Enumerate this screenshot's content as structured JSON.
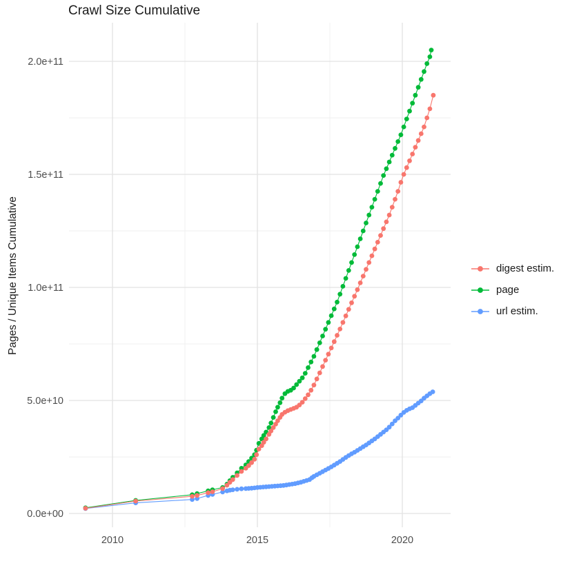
{
  "title": "Crawl Size Cumulative",
  "axes": {
    "y_title": "Pages / Unique Items Cumulative",
    "x_ticks": [
      {
        "label": "2010",
        "value": 2010
      },
      {
        "label": "2015",
        "value": 2015
      },
      {
        "label": "2020",
        "value": 2020
      }
    ],
    "y_ticks": [
      {
        "label": "0.0e+00",
        "value": 0
      },
      {
        "label": "5.0e+10",
        "value": 50000000000.0
      },
      {
        "label": "1.0e+11",
        "value": 100000000000.0
      },
      {
        "label": "1.5e+11",
        "value": 150000000000.0
      },
      {
        "label": "2.0e+11",
        "value": 200000000000.0
      }
    ],
    "tick_color": "#4d4d4d",
    "major_grid_color": "#e2e2e2",
    "minor_grid_color": "#efefef"
  },
  "legend": {
    "items": [
      {
        "label": "digest estim.",
        "color": "#F8766D"
      },
      {
        "label": "page",
        "color": "#00BA38"
      },
      {
        "label": "url estim.",
        "color": "#619CFF"
      }
    ]
  },
  "chart_data": {
    "type": "line",
    "title": "Crawl Size Cumulative",
    "xlabel": "",
    "ylabel": "Pages / Unique Items Cumulative",
    "x_unit": "year (decimal)",
    "xlim": [
      2008.5,
      2021.7
    ],
    "ylim": [
      -6000000000.0,
      217000000000.0
    ],
    "grid": true,
    "legend_position": "right",
    "marker": "point-with-line",
    "series": [
      {
        "name": "digest estim.",
        "color": "#F8766D",
        "points": [
          [
            2009.07,
            2300000000.0
          ],
          [
            2010.8,
            5500000000.0
          ],
          [
            2012.75,
            7600000000.0
          ],
          [
            2012.92,
            8000000000.0
          ],
          [
            2013.3,
            9200000000.0
          ],
          [
            2013.45,
            9600000000.0
          ],
          [
            2013.8,
            11000000000.0
          ],
          [
            2013.95,
            12500000000.0
          ],
          [
            2014.05,
            13800000000.0
          ],
          [
            2014.15,
            15000000000.0
          ],
          [
            2014.3,
            16800000000.0
          ],
          [
            2014.45,
            18600000000.0
          ],
          [
            2014.6,
            20000000000.0
          ],
          [
            2014.7,
            21200000000.0
          ],
          [
            2014.8,
            22500000000.0
          ],
          [
            2014.9,
            24000000000.0
          ],
          [
            2014.97,
            26000000000.0
          ],
          [
            2015.05,
            28500000000.0
          ],
          [
            2015.15,
            30000000000.0
          ],
          [
            2015.22,
            31500000000.0
          ],
          [
            2015.3,
            33000000000.0
          ],
          [
            2015.4,
            35000000000.0
          ],
          [
            2015.47,
            36500000000.0
          ],
          [
            2015.55,
            38000000000.0
          ],
          [
            2015.63,
            39500000000.0
          ],
          [
            2015.7,
            41000000000.0
          ],
          [
            2015.78,
            42500000000.0
          ],
          [
            2015.85,
            43800000000.0
          ],
          [
            2015.95,
            44800000000.0
          ],
          [
            2016.05,
            45500000000.0
          ],
          [
            2016.15,
            46000000000.0
          ],
          [
            2016.25,
            46500000000.0
          ],
          [
            2016.35,
            47000000000.0
          ],
          [
            2016.45,
            48000000000.0
          ],
          [
            2016.55,
            49200000000.0
          ],
          [
            2016.65,
            50800000000.0
          ],
          [
            2016.75,
            52500000000.0
          ],
          [
            2016.85,
            54500000000.0
          ],
          [
            2016.95,
            56800000000.0
          ],
          [
            2017.05,
            59500000000.0
          ],
          [
            2017.15,
            62200000000.0
          ],
          [
            2017.25,
            65000000000.0
          ],
          [
            2017.35,
            67800000000.0
          ],
          [
            2017.45,
            70500000000.0
          ],
          [
            2017.55,
            73200000000.0
          ],
          [
            2017.65,
            76000000000.0
          ],
          [
            2017.75,
            78800000000.0
          ],
          [
            2017.85,
            81600000000.0
          ],
          [
            2017.95,
            84500000000.0
          ],
          [
            2018.05,
            87400000000.0
          ],
          [
            2018.15,
            90300000000.0
          ],
          [
            2018.25,
            93200000000.0
          ],
          [
            2018.35,
            96100000000.0
          ],
          [
            2018.45,
            99000000000.0
          ],
          [
            2018.55,
            102000000000.0
          ],
          [
            2018.65,
            105000000000.0
          ],
          [
            2018.75,
            108000000000.0
          ],
          [
            2018.85,
            111000000000.0
          ],
          [
            2018.95,
            114000000000.0
          ],
          [
            2019.05,
            117000000000.0
          ],
          [
            2019.15,
            120000000000.0
          ],
          [
            2019.25,
            123000000000.0
          ],
          [
            2019.35,
            126000000000.0
          ],
          [
            2019.45,
            129000000000.0
          ],
          [
            2019.55,
            132000000000.0
          ],
          [
            2019.65,
            135500000000.0
          ],
          [
            2019.75,
            139000000000.0
          ],
          [
            2019.85,
            142500000000.0
          ],
          [
            2019.95,
            146500000000.0
          ],
          [
            2020.05,
            150000000000.0
          ],
          [
            2020.15,
            153000000000.0
          ],
          [
            2020.25,
            156000000000.0
          ],
          [
            2020.35,
            159000000000.0
          ],
          [
            2020.45,
            162000000000.0
          ],
          [
            2020.55,
            165000000000.0
          ],
          [
            2020.65,
            168000000000.0
          ],
          [
            2020.75,
            171000000000.0
          ],
          [
            2020.85,
            175000000000.0
          ],
          [
            2020.95,
            179000000000.0
          ],
          [
            2021.07,
            185000000000.0
          ]
        ]
      },
      {
        "name": "page",
        "color": "#00BA38",
        "points": [
          [
            2009.07,
            2500000000.0
          ],
          [
            2010.8,
            5800000000.0
          ],
          [
            2012.75,
            8300000000.0
          ],
          [
            2012.92,
            8800000000.0
          ],
          [
            2013.3,
            10000000000.0
          ],
          [
            2013.45,
            10500000000.0
          ],
          [
            2013.8,
            11500000000.0
          ],
          [
            2013.95,
            13000000000.0
          ],
          [
            2014.05,
            14500000000.0
          ],
          [
            2014.15,
            16000000000.0
          ],
          [
            2014.3,
            18000000000.0
          ],
          [
            2014.45,
            20000000000.0
          ],
          [
            2014.6,
            21500000000.0
          ],
          [
            2014.7,
            23000000000.0
          ],
          [
            2014.8,
            24500000000.0
          ],
          [
            2014.9,
            26000000000.0
          ],
          [
            2014.97,
            28000000000.0
          ],
          [
            2015.05,
            31000000000.0
          ],
          [
            2015.15,
            33000000000.0
          ],
          [
            2015.22,
            34500000000.0
          ],
          [
            2015.3,
            36000000000.0
          ],
          [
            2015.4,
            38000000000.0
          ],
          [
            2015.47,
            40000000000.0
          ],
          [
            2015.55,
            42500000000.0
          ],
          [
            2015.63,
            45000000000.0
          ],
          [
            2015.7,
            47000000000.0
          ],
          [
            2015.78,
            49000000000.0
          ],
          [
            2015.85,
            51000000000.0
          ],
          [
            2015.95,
            53000000000.0
          ],
          [
            2016.05,
            54000000000.0
          ],
          [
            2016.15,
            54500000000.0
          ],
          [
            2016.25,
            55500000000.0
          ],
          [
            2016.35,
            57000000000.0
          ],
          [
            2016.45,
            58500000000.0
          ],
          [
            2016.55,
            60000000000.0
          ],
          [
            2016.65,
            62000000000.0
          ],
          [
            2016.75,
            64500000000.0
          ],
          [
            2016.85,
            67000000000.0
          ],
          [
            2016.95,
            69500000000.0
          ],
          [
            2017.05,
            72500000000.0
          ],
          [
            2017.15,
            75500000000.0
          ],
          [
            2017.25,
            78500000000.0
          ],
          [
            2017.35,
            81500000000.0
          ],
          [
            2017.45,
            84500000000.0
          ],
          [
            2017.55,
            87500000000.0
          ],
          [
            2017.65,
            90500000000.0
          ],
          [
            2017.75,
            93500000000.0
          ],
          [
            2017.85,
            97000000000.0
          ],
          [
            2017.95,
            100500000000.0
          ],
          [
            2018.05,
            104000000000.0
          ],
          [
            2018.15,
            107500000000.0
          ],
          [
            2018.25,
            111000000000.0
          ],
          [
            2018.35,
            114500000000.0
          ],
          [
            2018.45,
            118000000000.0
          ],
          [
            2018.55,
            121500000000.0
          ],
          [
            2018.65,
            125000000000.0
          ],
          [
            2018.75,
            128500000000.0
          ],
          [
            2018.85,
            132000000000.0
          ],
          [
            2018.95,
            135500000000.0
          ],
          [
            2019.05,
            139000000000.0
          ],
          [
            2019.15,
            142500000000.0
          ],
          [
            2019.25,
            146000000000.0
          ],
          [
            2019.35,
            149500000000.0
          ],
          [
            2019.45,
            152500000000.0
          ],
          [
            2019.55,
            155500000000.0
          ],
          [
            2019.65,
            158500000000.0
          ],
          [
            2019.75,
            161500000000.0
          ],
          [
            2019.85,
            164500000000.0
          ],
          [
            2019.95,
            167500000000.0
          ],
          [
            2020.05,
            171000000000.0
          ],
          [
            2020.15,
            174500000000.0
          ],
          [
            2020.25,
            178000000000.0
          ],
          [
            2020.35,
            181500000000.0
          ],
          [
            2020.45,
            185000000000.0
          ],
          [
            2020.55,
            188500000000.0
          ],
          [
            2020.65,
            192000000000.0
          ],
          [
            2020.75,
            195500000000.0
          ],
          [
            2020.85,
            199000000000.0
          ],
          [
            2020.95,
            202000000000.0
          ],
          [
            2021.0,
            205000000000.0
          ]
        ]
      },
      {
        "name": "url estim.",
        "color": "#619CFF",
        "points": [
          [
            2009.07,
            2200000000.0
          ],
          [
            2010.8,
            4700000000.0
          ],
          [
            2012.75,
            6200000000.0
          ],
          [
            2012.92,
            6600000000.0
          ],
          [
            2013.3,
            8000000000.0
          ],
          [
            2013.45,
            8400000000.0
          ],
          [
            2013.8,
            9500000000.0
          ],
          [
            2013.95,
            10000000000.0
          ],
          [
            2014.05,
            10300000000.0
          ],
          [
            2014.15,
            10500000000.0
          ],
          [
            2014.3,
            10700000000.0
          ],
          [
            2014.45,
            10900000000.0
          ],
          [
            2014.6,
            11000000000.0
          ],
          [
            2014.7,
            11100000000.0
          ],
          [
            2014.8,
            11200000000.0
          ],
          [
            2014.9,
            11300000000.0
          ],
          [
            2015.0,
            11500000000.0
          ],
          [
            2015.1,
            11600000000.0
          ],
          [
            2015.2,
            11700000000.0
          ],
          [
            2015.3,
            11800000000.0
          ],
          [
            2015.4,
            11900000000.0
          ],
          [
            2015.5,
            12000000000.0
          ],
          [
            2015.6,
            12100000000.0
          ],
          [
            2015.7,
            12200000000.0
          ],
          [
            2015.8,
            12300000000.0
          ],
          [
            2015.9,
            12400000000.0
          ],
          [
            2016.0,
            12600000000.0
          ],
          [
            2016.1,
            12800000000.0
          ],
          [
            2016.2,
            13000000000.0
          ],
          [
            2016.3,
            13200000000.0
          ],
          [
            2016.4,
            13500000000.0
          ],
          [
            2016.5,
            13800000000.0
          ],
          [
            2016.6,
            14200000000.0
          ],
          [
            2016.7,
            14600000000.0
          ],
          [
            2016.8,
            15000000000.0
          ],
          [
            2016.88,
            15800000000.0
          ],
          [
            2016.95,
            16400000000.0
          ],
          [
            2017.05,
            17100000000.0
          ],
          [
            2017.15,
            17800000000.0
          ],
          [
            2017.25,
            18500000000.0
          ],
          [
            2017.35,
            19200000000.0
          ],
          [
            2017.45,
            19900000000.0
          ],
          [
            2017.55,
            20600000000.0
          ],
          [
            2017.65,
            21400000000.0
          ],
          [
            2017.75,
            22200000000.0
          ],
          [
            2017.85,
            23000000000.0
          ],
          [
            2017.95,
            23900000000.0
          ],
          [
            2018.05,
            24800000000.0
          ],
          [
            2018.15,
            25600000000.0
          ],
          [
            2018.25,
            26400000000.0
          ],
          [
            2018.35,
            27100000000.0
          ],
          [
            2018.45,
            27900000000.0
          ],
          [
            2018.55,
            28700000000.0
          ],
          [
            2018.65,
            29500000000.0
          ],
          [
            2018.75,
            30300000000.0
          ],
          [
            2018.85,
            31200000000.0
          ],
          [
            2018.95,
            32100000000.0
          ],
          [
            2019.05,
            33000000000.0
          ],
          [
            2019.15,
            34000000000.0
          ],
          [
            2019.25,
            35000000000.0
          ],
          [
            2019.35,
            36000000000.0
          ],
          [
            2019.45,
            37000000000.0
          ],
          [
            2019.55,
            38200000000.0
          ],
          [
            2019.65,
            39600000000.0
          ],
          [
            2019.75,
            41000000000.0
          ],
          [
            2019.85,
            42200000000.0
          ],
          [
            2019.95,
            43500000000.0
          ],
          [
            2020.05,
            44700000000.0
          ],
          [
            2020.15,
            45600000000.0
          ],
          [
            2020.25,
            46300000000.0
          ],
          [
            2020.35,
            46800000000.0
          ],
          [
            2020.45,
            47800000000.0
          ],
          [
            2020.55,
            48800000000.0
          ],
          [
            2020.65,
            49800000000.0
          ],
          [
            2020.75,
            51000000000.0
          ],
          [
            2020.85,
            52000000000.0
          ],
          [
            2020.95,
            53000000000.0
          ],
          [
            2021.05,
            53800000000.0
          ]
        ]
      }
    ]
  }
}
